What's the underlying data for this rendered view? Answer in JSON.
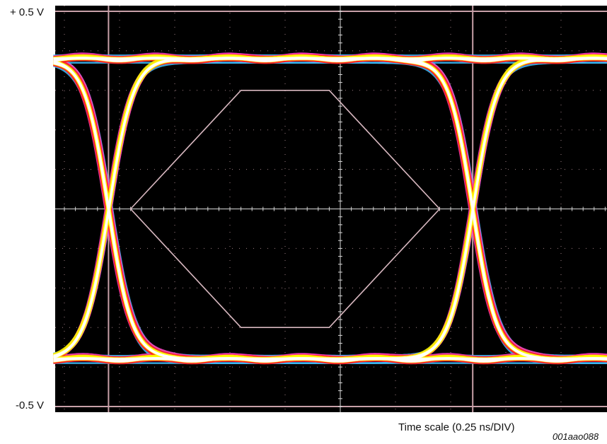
{
  "chart_data": {
    "type": "line",
    "title": "",
    "xlabel": "Time scale (0.25 ns/DIV)",
    "ylabel": "",
    "y_tick_labels": [
      "+ 0.5 V",
      "-0.5 V"
    ],
    "ylim": [
      -0.5,
      0.5
    ],
    "x_divisions": 10,
    "y_divisions": 10,
    "x_unit_per_div_ns": 0.25,
    "grid": true,
    "eye": {
      "crossing_time_ns": [
        0.2,
        1.85
      ],
      "crossing_level_v": 0.0,
      "high_level_v": 0.38,
      "low_level_v": -0.38
    },
    "mask": {
      "shape": "hexagon",
      "points_ns_v": [
        [
          0.3,
          0.0
        ],
        [
          0.8,
          0.3
        ],
        [
          1.2,
          0.3
        ],
        [
          1.7,
          0.0
        ],
        [
          1.2,
          -0.3
        ],
        [
          0.8,
          -0.3
        ]
      ]
    },
    "trace_colors": [
      "#ffffff",
      "#ffff00",
      "#ff2020",
      "#ff40c0",
      "#40c0ff"
    ],
    "background": "#000000",
    "grid_color": "#c8a0a8",
    "figure_id": "001aao088"
  }
}
